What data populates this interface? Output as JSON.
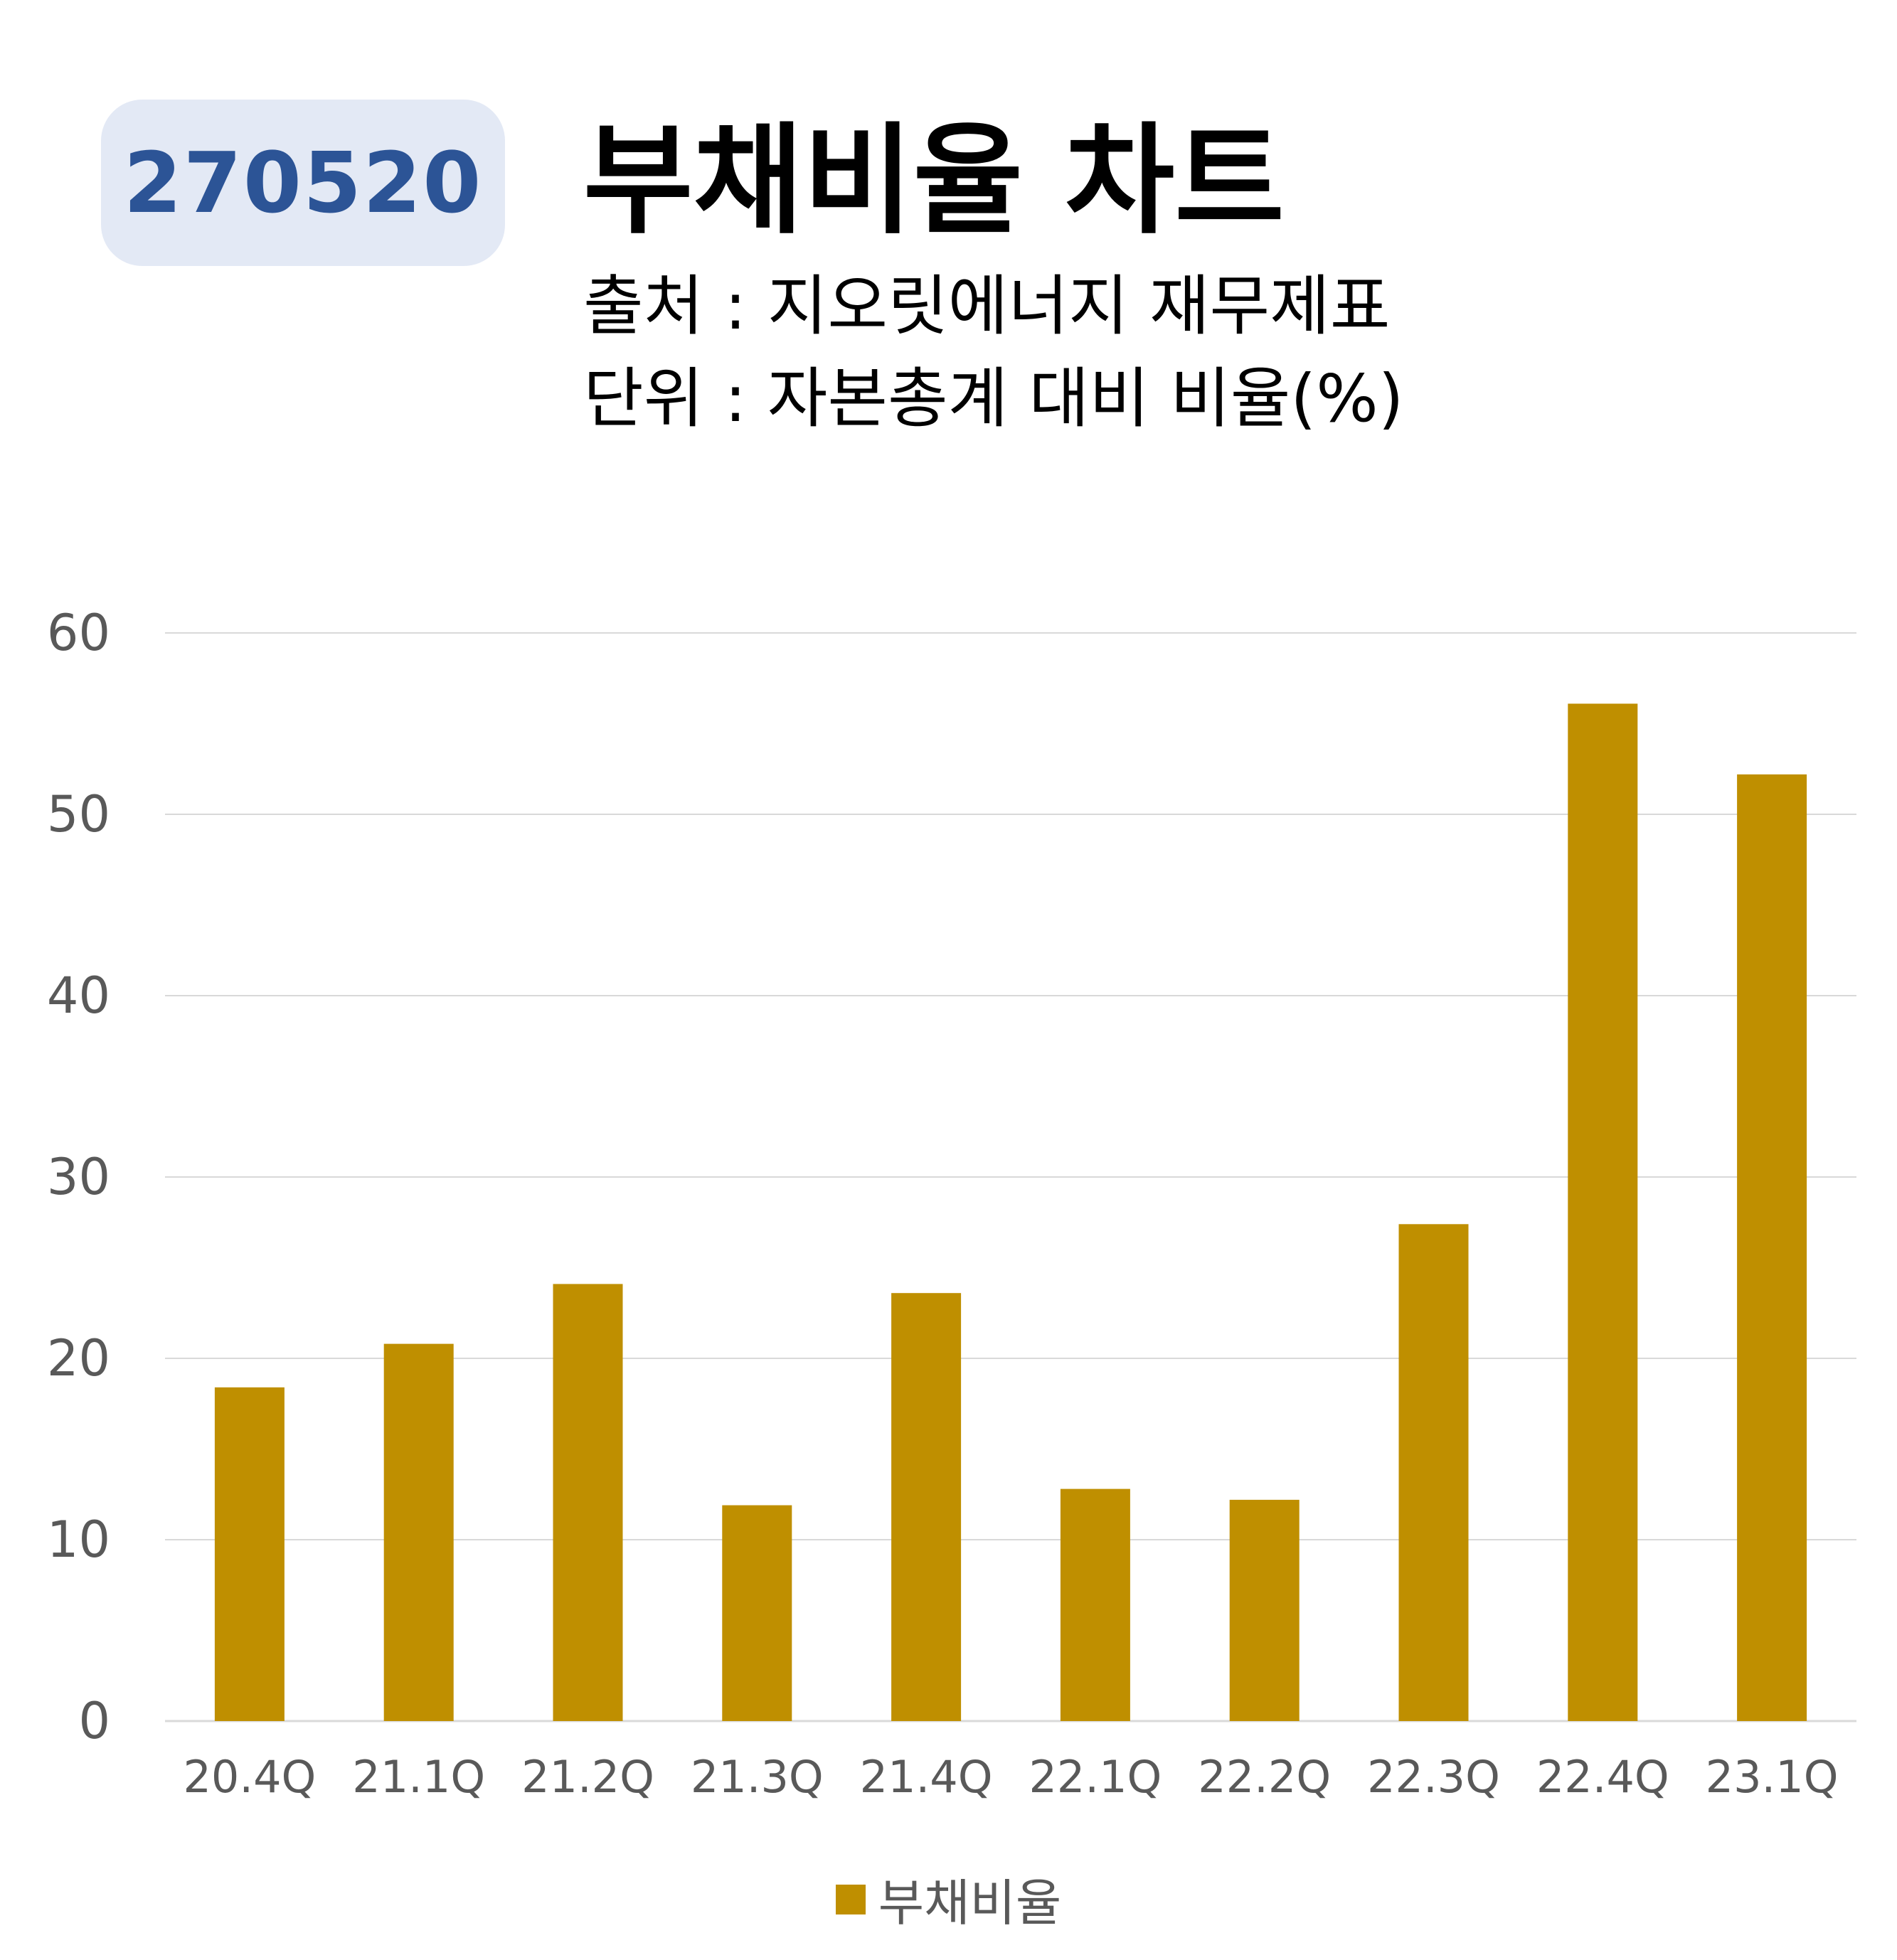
{
  "header": {
    "code": "270520",
    "title": "부채비율 차트",
    "source": "출처 : 지오릿에너지 재무제표",
    "unit": "단위 : 자본총계 대비 비율(%)"
  },
  "colors": {
    "bar": "#bf8f00",
    "badge_bg": "#e3e9f5",
    "badge_text": "#2c5496",
    "grid": "#d9d9d9",
    "axis_text": "#595959"
  },
  "chart_data": {
    "type": "bar",
    "categories": [
      "20.4Q",
      "21.1Q",
      "21.2Q",
      "21.3Q",
      "21.4Q",
      "22.1Q",
      "22.2Q",
      "22.3Q",
      "22.4Q",
      "23.1Q"
    ],
    "series": [
      {
        "name": "부채비율",
        "values": [
          18.4,
          20.8,
          24.1,
          11.9,
          23.6,
          12.8,
          12.2,
          27.4,
          56.1,
          52.2
        ]
      }
    ],
    "ylim": [
      0,
      60
    ],
    "yticks": [
      0,
      10,
      20,
      30,
      40,
      50,
      60
    ],
    "grid": true,
    "legend": "bottom"
  }
}
